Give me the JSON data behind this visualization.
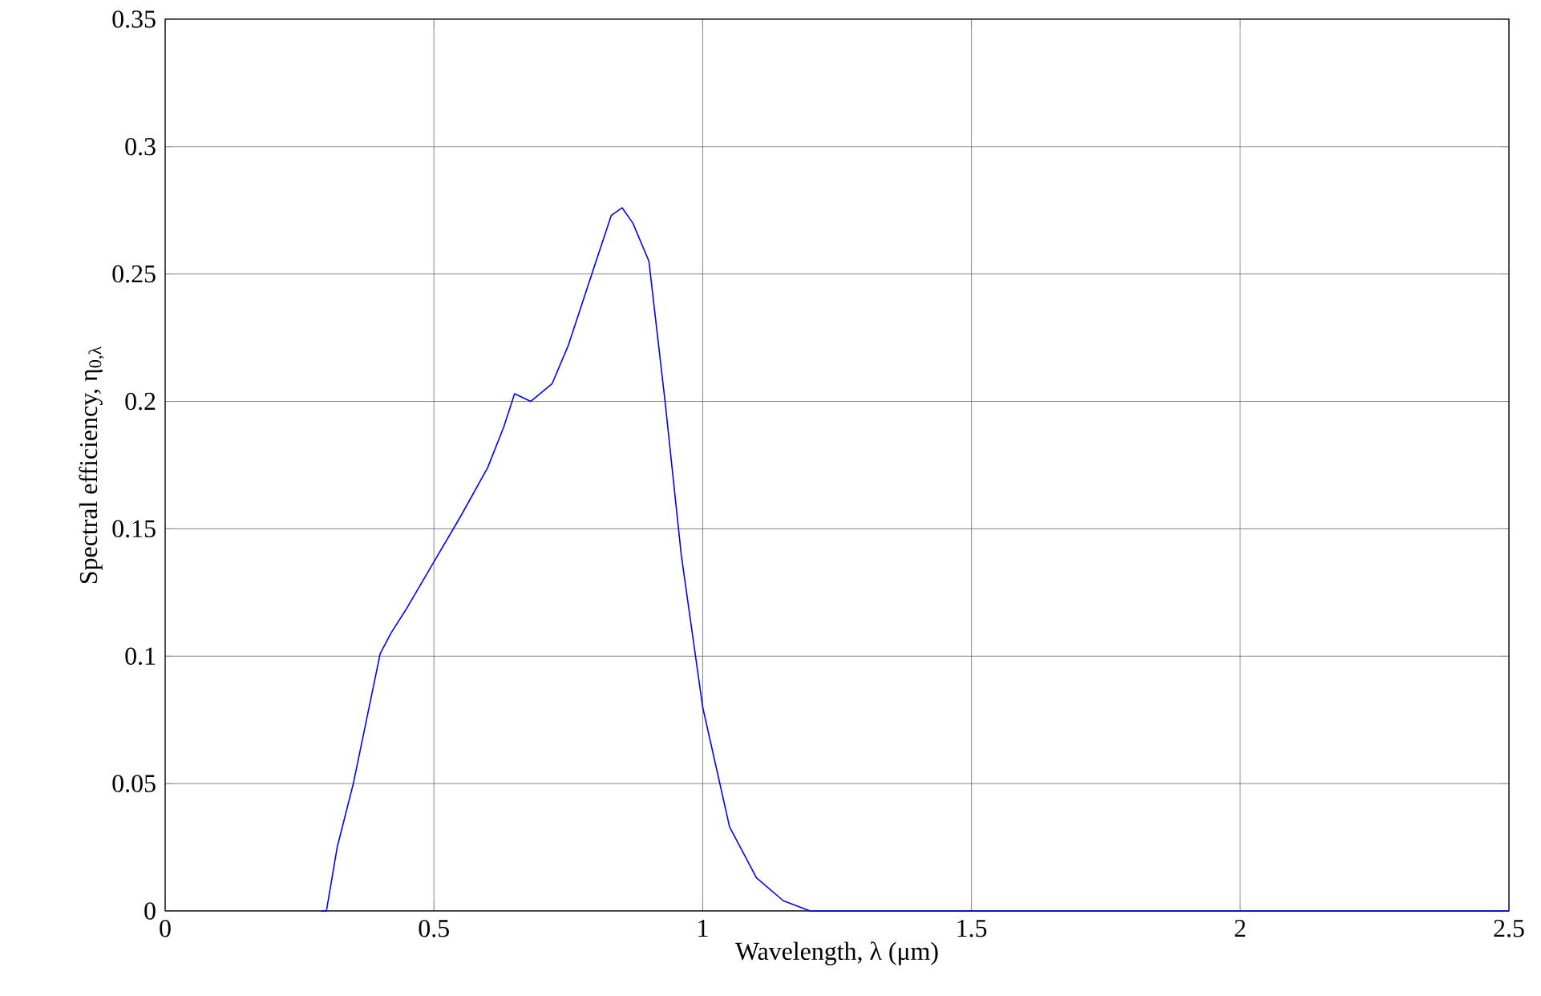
{
  "chart_data": {
    "type": "line",
    "xlabel": "Wavelength, λ (μm)",
    "ylabel": "Spectral efficiency, η$_{0,λ}$",
    "x": [
      0.29,
      0.3,
      0.32,
      0.35,
      0.4,
      0.42,
      0.45,
      0.5,
      0.55,
      0.6,
      0.63,
      0.65,
      0.68,
      0.72,
      0.75,
      0.8,
      0.83,
      0.85,
      0.87,
      0.9,
      0.93,
      0.96,
      1.0,
      1.05,
      1.1,
      1.15,
      1.2,
      1.5,
      2.0,
      2.5
    ],
    "series": [
      {
        "color": "#0000ff",
        "values": [
          0,
          0,
          0.025,
          0.05,
          0.101,
          0.109,
          0.119,
          0.137,
          0.155,
          0.174,
          0.19,
          0.203,
          0.2,
          0.207,
          0.222,
          0.254,
          0.273,
          0.276,
          0.27,
          0.255,
          0.2,
          0.14,
          0.08,
          0.033,
          0.013,
          0.004,
          0,
          0,
          0,
          0
        ]
      }
    ],
    "xlim": [
      0,
      2.5
    ],
    "ylim": [
      0,
      0.35
    ],
    "xticks": [
      0,
      0.5,
      1,
      1.5,
      2,
      2.5
    ],
    "yticks": [
      0,
      0.05,
      0.1,
      0.15,
      0.2,
      0.25,
      0.3,
      0.35
    ],
    "grid": true,
    "marker": "none",
    "line_style": "solid"
  }
}
